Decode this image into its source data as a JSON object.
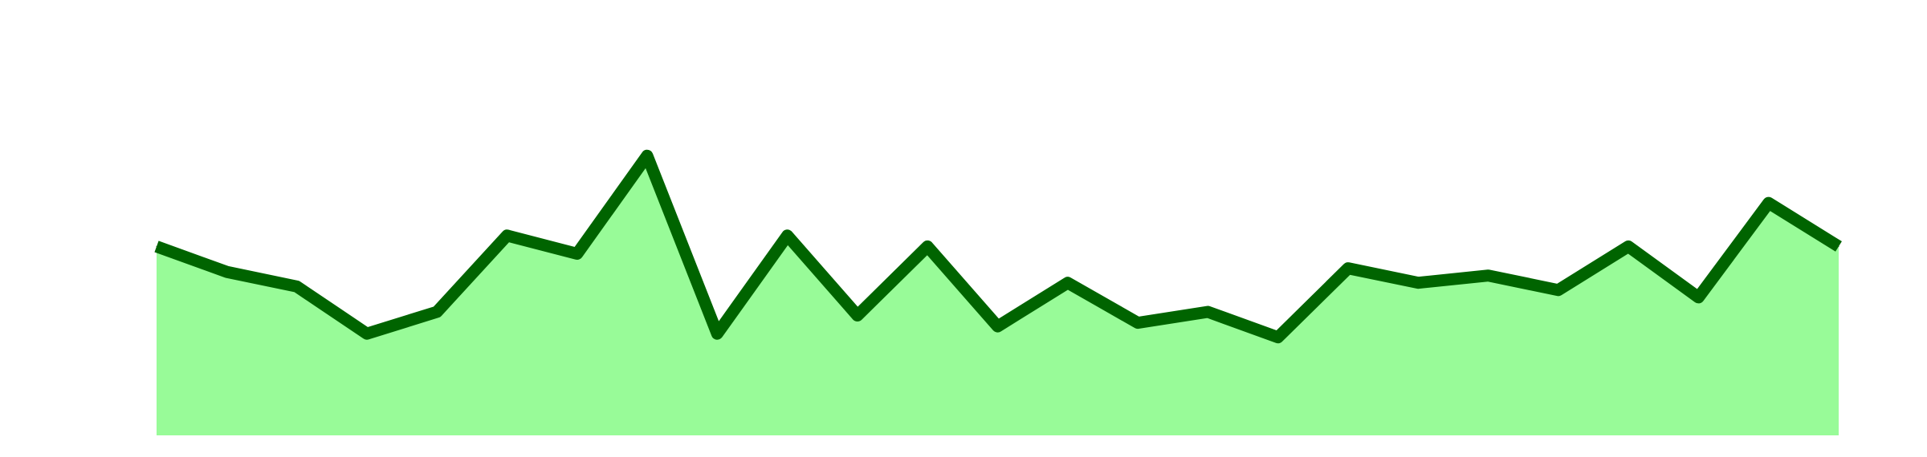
{
  "chart_data": {
    "type": "area",
    "x": [
      1,
      2,
      3,
      4,
      5,
      6,
      7,
      8,
      9,
      10,
      11,
      12,
      13,
      14,
      15,
      16,
      17,
      18,
      19,
      20,
      21,
      22,
      23,
      24,
      25
    ],
    "series": [
      {
        "values": [
          52,
          45,
          41,
          28,
          34,
          55,
          50,
          77,
          28,
          55,
          33,
          52,
          30,
          42,
          31,
          34,
          27,
          46,
          42,
          44,
          40,
          52,
          38,
          64,
          52
        ]
      }
    ],
    "ylim": [
      0,
      100
    ],
    "xlim": [
      1,
      25
    ],
    "grid": false,
    "legend": "none",
    "axes_visible": false,
    "colors": {
      "line": "#006400",
      "fill": "#98fb98"
    }
  }
}
